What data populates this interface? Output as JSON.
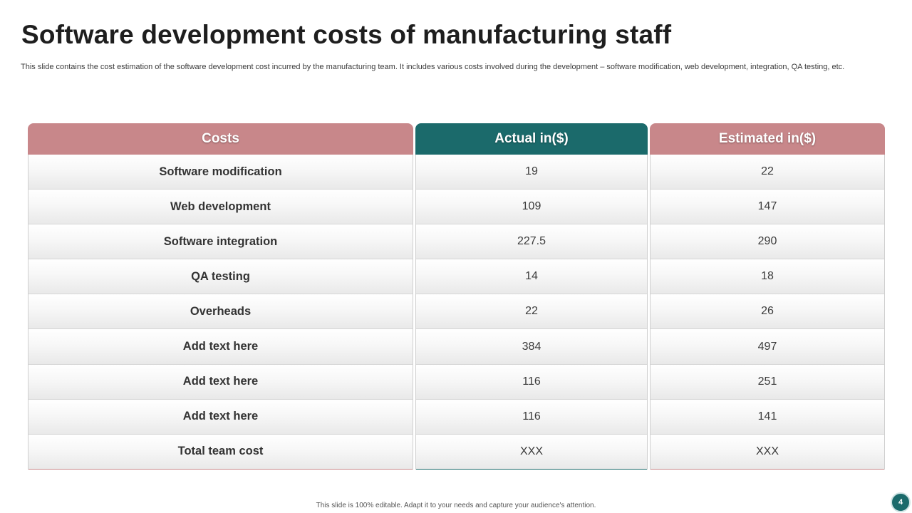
{
  "title": "Software development costs of manufacturing staff",
  "subtitle": "This slide contains the cost estimation of the software development cost incurred by the manufacturing team. It includes various costs involved during the development – software modification, web development, integration, QA testing, etc.",
  "table": {
    "headers": [
      "Costs",
      "Actual in($)",
      "Estimated in($)"
    ],
    "rows": [
      {
        "cost": "Software modification",
        "actual": "19",
        "estimated": "22"
      },
      {
        "cost": "Web development",
        "actual": "109",
        "estimated": "147"
      },
      {
        "cost": "Software integration",
        "actual": "227.5",
        "estimated": "290"
      },
      {
        "cost": "QA testing",
        "actual": "14",
        "estimated": "18"
      },
      {
        "cost": "Overheads",
        "actual": "22",
        "estimated": "26"
      },
      {
        "cost": "Add text here",
        "actual": "384",
        "estimated": "497"
      },
      {
        "cost": "Add text here",
        "actual": "116",
        "estimated": "251"
      },
      {
        "cost": "Add text here",
        "actual": "116",
        "estimated": "141"
      },
      {
        "cost": "Total team cost",
        "actual": "XXX",
        "estimated": "XXX"
      }
    ]
  },
  "footer": "This slide is 100% editable.  Adapt it to your needs and capture your audience's attention.",
  "page_number": "4",
  "colors": {
    "accent_pink": "#c8878a",
    "accent_teal": "#1b6a6b"
  }
}
